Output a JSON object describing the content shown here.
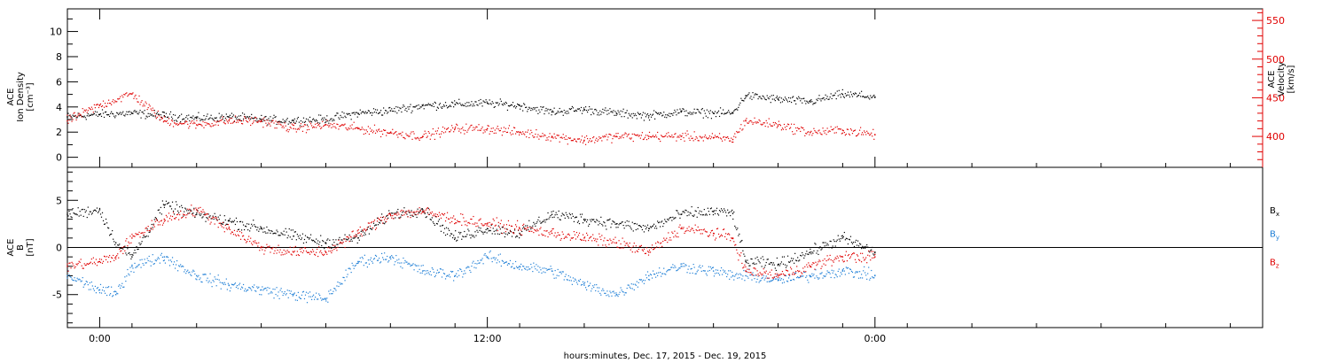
{
  "chart_data": [
    {
      "type": "scatter",
      "panel": "top",
      "ylabel_lines": [
        "ACE",
        "Ion Density",
        "[cm⁻³]"
      ],
      "ylim": [
        -0.8,
        11.8
      ],
      "yticks": [
        0,
        2,
        4,
        6,
        8,
        10
      ],
      "y2label_lines": [
        "ACE",
        "Velocity",
        "[km/s]"
      ],
      "y2lim": [
        360,
        565
      ],
      "y2ticks": [
        400,
        450,
        500,
        550
      ],
      "grid": false,
      "colors": {
        "density": "#000000",
        "velocity": "#e00000"
      },
      "series": [
        {
          "color": "#000000",
          "axis": "left",
          "x": [
            -1.0,
            0.0,
            1.0,
            2.0,
            3.0,
            4.0,
            5.0,
            6.0,
            7.0,
            8.0,
            9.0,
            10.0,
            11.0,
            12.0,
            13.0,
            14.0,
            15.0,
            16.0,
            17.0,
            18.0,
            19.0,
            19.6,
            20.0,
            21.0,
            22.0,
            23.0,
            24.0
          ],
          "values": [
            3.2,
            3.4,
            3.5,
            3.3,
            3.1,
            3.2,
            3.0,
            2.9,
            3.0,
            3.5,
            3.7,
            4.1,
            4.2,
            4.3,
            4.1,
            3.6,
            3.8,
            3.5,
            3.3,
            3.6,
            3.5,
            3.5,
            4.9,
            4.6,
            4.4,
            5.0,
            4.8
          ]
        },
        {
          "color": "#e00000",
          "axis": "right",
          "x": [
            -1.0,
            0.0,
            1.0,
            2.0,
            3.0,
            4.0,
            5.0,
            6.0,
            7.0,
            8.0,
            9.0,
            10.0,
            11.0,
            12.0,
            13.0,
            14.0,
            15.0,
            16.0,
            17.0,
            18.0,
            19.0,
            19.6,
            20.0,
            21.0,
            22.0,
            23.0,
            24.0
          ],
          "values": [
            420,
            440,
            455,
            420,
            415,
            420,
            420,
            410,
            415,
            410,
            405,
            400,
            410,
            410,
            405,
            400,
            395,
            400,
            400,
            400,
            398,
            396,
            420,
            415,
            405,
            408,
            402
          ]
        }
      ]
    },
    {
      "type": "scatter",
      "panel": "bottom",
      "ylabel_lines": [
        "ACE",
        "B",
        "[nT]"
      ],
      "ylim": [
        -8.5,
        8.5
      ],
      "yticks": [
        -5,
        0,
        5
      ],
      "zero_line": true,
      "grid": false,
      "legend": "right",
      "series": [
        {
          "name": "Bx",
          "color": "#000000",
          "x": [
            -1.0,
            0.0,
            0.5,
            1.0,
            2.0,
            3.0,
            4.0,
            5.0,
            6.0,
            7.0,
            8.0,
            9.0,
            10.0,
            11.0,
            12.0,
            13.0,
            14.0,
            15.0,
            16.0,
            17.0,
            18.0,
            19.0,
            19.6,
            20.0,
            21.0,
            22.0,
            23.0,
            24.0
          ],
          "values": [
            3.5,
            4.0,
            0.5,
            -1.0,
            4.5,
            3.5,
            2.8,
            2.0,
            1.2,
            0.5,
            1.0,
            3.5,
            4.0,
            1.0,
            2.0,
            1.5,
            3.5,
            3.0,
            2.5,
            2.0,
            3.5,
            3.8,
            3.6,
            -1.5,
            -1.8,
            -0.5,
            1.0,
            -0.5
          ]
        },
        {
          "name": "By",
          "color": "#1f7fd6",
          "x": [
            -1.0,
            0.0,
            0.5,
            1.0,
            2.0,
            3.0,
            4.0,
            5.0,
            6.0,
            7.0,
            8.0,
            9.0,
            10.0,
            11.0,
            12.0,
            13.0,
            14.0,
            15.0,
            16.0,
            17.0,
            18.0,
            19.0,
            19.6,
            20.0,
            21.0,
            22.0,
            23.0,
            24.0
          ],
          "values": [
            -3.0,
            -4.5,
            -5.0,
            -2.0,
            -1.0,
            -3.0,
            -4.0,
            -4.5,
            -5.0,
            -5.5,
            -1.5,
            -1.0,
            -2.5,
            -3.0,
            -1.0,
            -2.0,
            -2.5,
            -4.0,
            -5.0,
            -3.0,
            -2.0,
            -2.5,
            -3.0,
            -3.0,
            -3.5,
            -3.0,
            -2.5,
            -3.0
          ]
        },
        {
          "name": "Bz",
          "color": "#e00000",
          "x": [
            -1.0,
            0.0,
            0.5,
            1.0,
            2.0,
            3.0,
            4.0,
            5.0,
            6.0,
            7.0,
            8.0,
            9.0,
            10.0,
            11.0,
            12.0,
            13.0,
            14.0,
            15.0,
            16.0,
            17.0,
            18.0,
            19.0,
            19.6,
            20.0,
            21.0,
            22.0,
            23.0,
            24.0
          ],
          "values": [
            -2.0,
            -1.5,
            -1.0,
            1.0,
            3.0,
            4.0,
            2.0,
            0.0,
            -0.5,
            -0.5,
            1.5,
            3.5,
            3.8,
            3.0,
            2.5,
            2.0,
            1.5,
            1.0,
            0.5,
            -0.5,
            2.0,
            1.5,
            1.0,
            -2.5,
            -3.0,
            -2.0,
            -1.0,
            -1.0
          ]
        }
      ],
      "legend_entries": [
        {
          "text": "B",
          "sub": "x",
          "color": "#000000"
        },
        {
          "text": "B",
          "sub": "y",
          "color": "#1f7fd6"
        },
        {
          "text": "B",
          "sub": "z",
          "color": "#e00000"
        }
      ]
    }
  ],
  "x_axis": {
    "xlim": [
      -1.0,
      36.0
    ],
    "major_ticks": [
      0,
      12,
      24
    ],
    "major_labels": [
      "0:00",
      "12:00",
      "0:00"
    ],
    "minor_step": 2,
    "xlabel": "hours:minutes, Dec. 17, 2015 - Dec. 19, 2015"
  }
}
